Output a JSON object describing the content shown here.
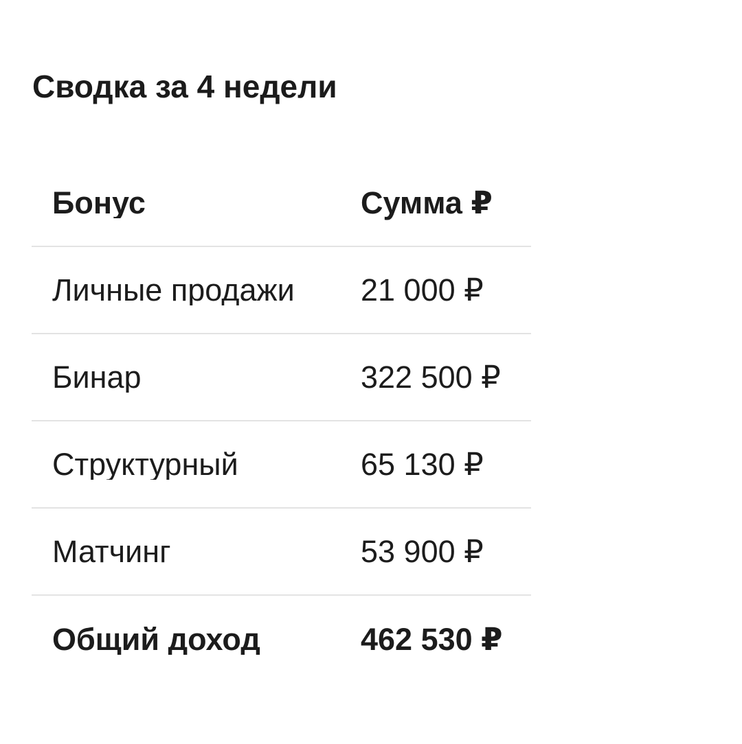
{
  "page": {
    "background_color": "#ffffff",
    "text_color": "#1c1c1c",
    "divider_color": "#e3e3e3"
  },
  "title": "Сводка за 4 недели",
  "table": {
    "headers": [
      "Бонус",
      "Сумма ₽"
    ],
    "rows": [
      {
        "label": "Личные продажи",
        "amount": "21 000 ₽"
      },
      {
        "label": "Бинар",
        "amount": "322 500 ₽"
      },
      {
        "label": "Структурный",
        "amount": "65 130 ₽"
      },
      {
        "label": "Матчинг",
        "amount": "53 900 ₽"
      }
    ],
    "total": {
      "label": "Общий доход",
      "amount": "462 530 ₽"
    }
  }
}
